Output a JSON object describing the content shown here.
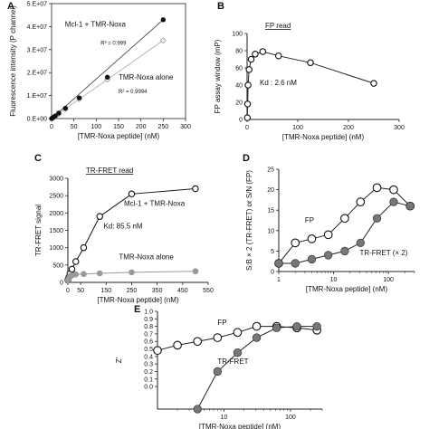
{
  "chart_data": [
    {
      "panel": "A",
      "type": "scatter",
      "xlabel": "[TMR-Noxa peptide] (nM)",
      "ylabel": "Fluorescence intensity (P channel)",
      "xlim": [
        0,
        300
      ],
      "ylim": [
        0,
        50000000
      ],
      "x_ticks": [
        "0",
        "50",
        "100",
        "150",
        "200",
        "250",
        "300"
      ],
      "y_ticks": [
        "0.E+00",
        "1.E+07",
        "2.E+07",
        "3.E+07",
        "4.E+07",
        "5.E+07"
      ],
      "series": [
        {
          "name": "Mcl-1 + TMR-Noxa",
          "color": "#aaaaaa",
          "marker": "open-diamond",
          "x": [
            0,
            2,
            4,
            8,
            16,
            31,
            62,
            125,
            250
          ],
          "y": [
            0,
            200000,
            500000,
            1000000,
            2100000,
            4200000,
            8500000,
            17000000,
            34000000
          ]
        },
        {
          "name": "TMR-Noxa alone",
          "color": "#111111",
          "marker": "filled-circle",
          "x": [
            0,
            2,
            4,
            8,
            16,
            31,
            62,
            125,
            250
          ],
          "y": [
            0,
            250000,
            550000,
            1100000,
            2400000,
            4500000,
            9000000,
            18000000,
            43000000
          ]
        }
      ],
      "annotations": [
        {
          "text": "Mcl-1 + TMR-Noxa",
          "x": 30,
          "y": 40000000
        },
        {
          "text": "R² = 0.999",
          "x": 110,
          "y": 32000000
        },
        {
          "text": "TMR-Noxa alone",
          "x": 150,
          "y": 17000000
        },
        {
          "text": "R² = 0.9994",
          "x": 150,
          "y": 11000000
        }
      ]
    },
    {
      "panel": "B",
      "type": "line",
      "title": "FP read",
      "xlabel": "[TMR-Noxa peptide] (nM)",
      "ylabel": "FP assay window (mP)",
      "xlim": [
        0,
        300
      ],
      "ylim": [
        0,
        100
      ],
      "x_ticks": [
        "0",
        "100",
        "200",
        "300"
      ],
      "y_ticks": [
        "0",
        "20",
        "40",
        "60",
        "80",
        "100"
      ],
      "series": [
        {
          "name": "FP",
          "marker": "open-circle",
          "x": [
            0.5,
            1,
            2,
            4,
            8,
            16,
            31,
            62,
            125,
            250
          ],
          "y": [
            2,
            18,
            40,
            58,
            70,
            76,
            79,
            74,
            66,
            42
          ]
        }
      ],
      "annotations": [
        {
          "text": "Kd : 2.6 nM",
          "x": 25,
          "y": 40
        }
      ]
    },
    {
      "panel": "C",
      "type": "line",
      "title": "TR-FRET read",
      "xlabel": "[TMR-Noxa peptide] (nM)",
      "ylabel": "TR-FRET signal",
      "xlim": [
        0,
        550
      ],
      "ylim": [
        0,
        3000
      ],
      "x_ticks": [
        "0",
        "50",
        "150",
        "250",
        "350",
        "450",
        "550"
      ],
      "y_ticks": [
        "0",
        "500",
        "1000",
        "1500",
        "2000",
        "2500",
        "3000"
      ],
      "series": [
        {
          "name": "Mcl-1 + TMR-Noxa",
          "marker": "open-circle",
          "color": "#111111",
          "x": [
            0,
            4,
            8,
            16,
            31,
            62,
            125,
            250,
            500
          ],
          "y": [
            70,
            150,
            250,
            380,
            600,
            1000,
            1900,
            2550,
            2700
          ]
        },
        {
          "name": "TMR-Noxa alone",
          "marker": "filled-circle",
          "color": "#999999",
          "x": [
            0,
            4,
            8,
            16,
            31,
            62,
            125,
            250,
            500
          ],
          "y": [
            60,
            120,
            180,
            200,
            230,
            240,
            260,
            290,
            320
          ]
        }
      ],
      "annotations": [
        {
          "text": "Mcl-1 + TMR-Noxa",
          "x": 220,
          "y": 2200
        },
        {
          "text": "Kd: 85.5 nM",
          "x": 140,
          "y": 1550
        },
        {
          "text": "TMR-Noxa alone",
          "x": 200,
          "y": 660
        }
      ]
    },
    {
      "panel": "D",
      "type": "line",
      "xlabel": "[TMR-Noxa peptide] (nM)",
      "ylabel": "S:B × 2 (TR-FRET) or S/N (FP)",
      "xscale": "log",
      "xlim": [
        1,
        300
      ],
      "ylim": [
        0,
        25
      ],
      "x_ticks": [
        "1",
        "10",
        "100"
      ],
      "y_ticks": [
        "0",
        "5",
        "10",
        "15",
        "20",
        "25"
      ],
      "series": [
        {
          "name": "FP",
          "marker": "open-circle",
          "x": [
            1,
            2,
            4,
            8,
            16,
            31,
            62,
            125,
            250
          ],
          "y": [
            2,
            7,
            8,
            9,
            13,
            17,
            20.5,
            20,
            16
          ]
        },
        {
          "name": "TR-FRET (× 2)",
          "marker": "filled-circle-gray",
          "x": [
            1,
            2,
            4,
            8,
            16,
            31,
            62,
            125,
            250
          ],
          "y": [
            2,
            2,
            3,
            4,
            5,
            7,
            13,
            17,
            16
          ]
        }
      ],
      "annotations": [
        {
          "text": "FP",
          "x": 3,
          "y": 12
        },
        {
          "text": "TR-FRET (× 2)",
          "x": 30,
          "y": 4
        }
      ]
    },
    {
      "panel": "E",
      "type": "line",
      "ylabel": "Z'",
      "xlabel": "[TMR-Noxa peptide] (nM)",
      "xscale": "log",
      "xlim": [
        1,
        300
      ],
      "ylim": [
        -0.3,
        1.0
      ],
      "x_ticks": [
        "10",
        "100"
      ],
      "y_ticks": [
        "0.0",
        "0.1",
        "0.2",
        "0.3",
        "0.4",
        "0.5",
        "0.6",
        "0.7",
        "0.8",
        "0.9",
        "1.0"
      ],
      "series": [
        {
          "name": "FP",
          "marker": "open-circle",
          "x": [
            1,
            2,
            4,
            8,
            16,
            31,
            62,
            125,
            250
          ],
          "y": [
            0.48,
            0.55,
            0.6,
            0.65,
            0.72,
            0.8,
            0.8,
            0.78,
            0.75
          ]
        },
        {
          "name": "TR-FRET",
          "marker": "filled-circle-gray",
          "x": [
            4,
            8,
            16,
            31,
            62,
            125,
            250
          ],
          "y": [
            -0.5,
            0.2,
            0.45,
            0.65,
            0.78,
            0.8,
            0.8
          ]
        }
      ],
      "annotations": [
        {
          "text": "FP",
          "x": 8,
          "y": 0.82
        },
        {
          "text": "TR-FRET",
          "x": 8,
          "y": 0.3
        }
      ]
    }
  ],
  "panel_labels": [
    "A",
    "B",
    "C",
    "D",
    "E"
  ]
}
